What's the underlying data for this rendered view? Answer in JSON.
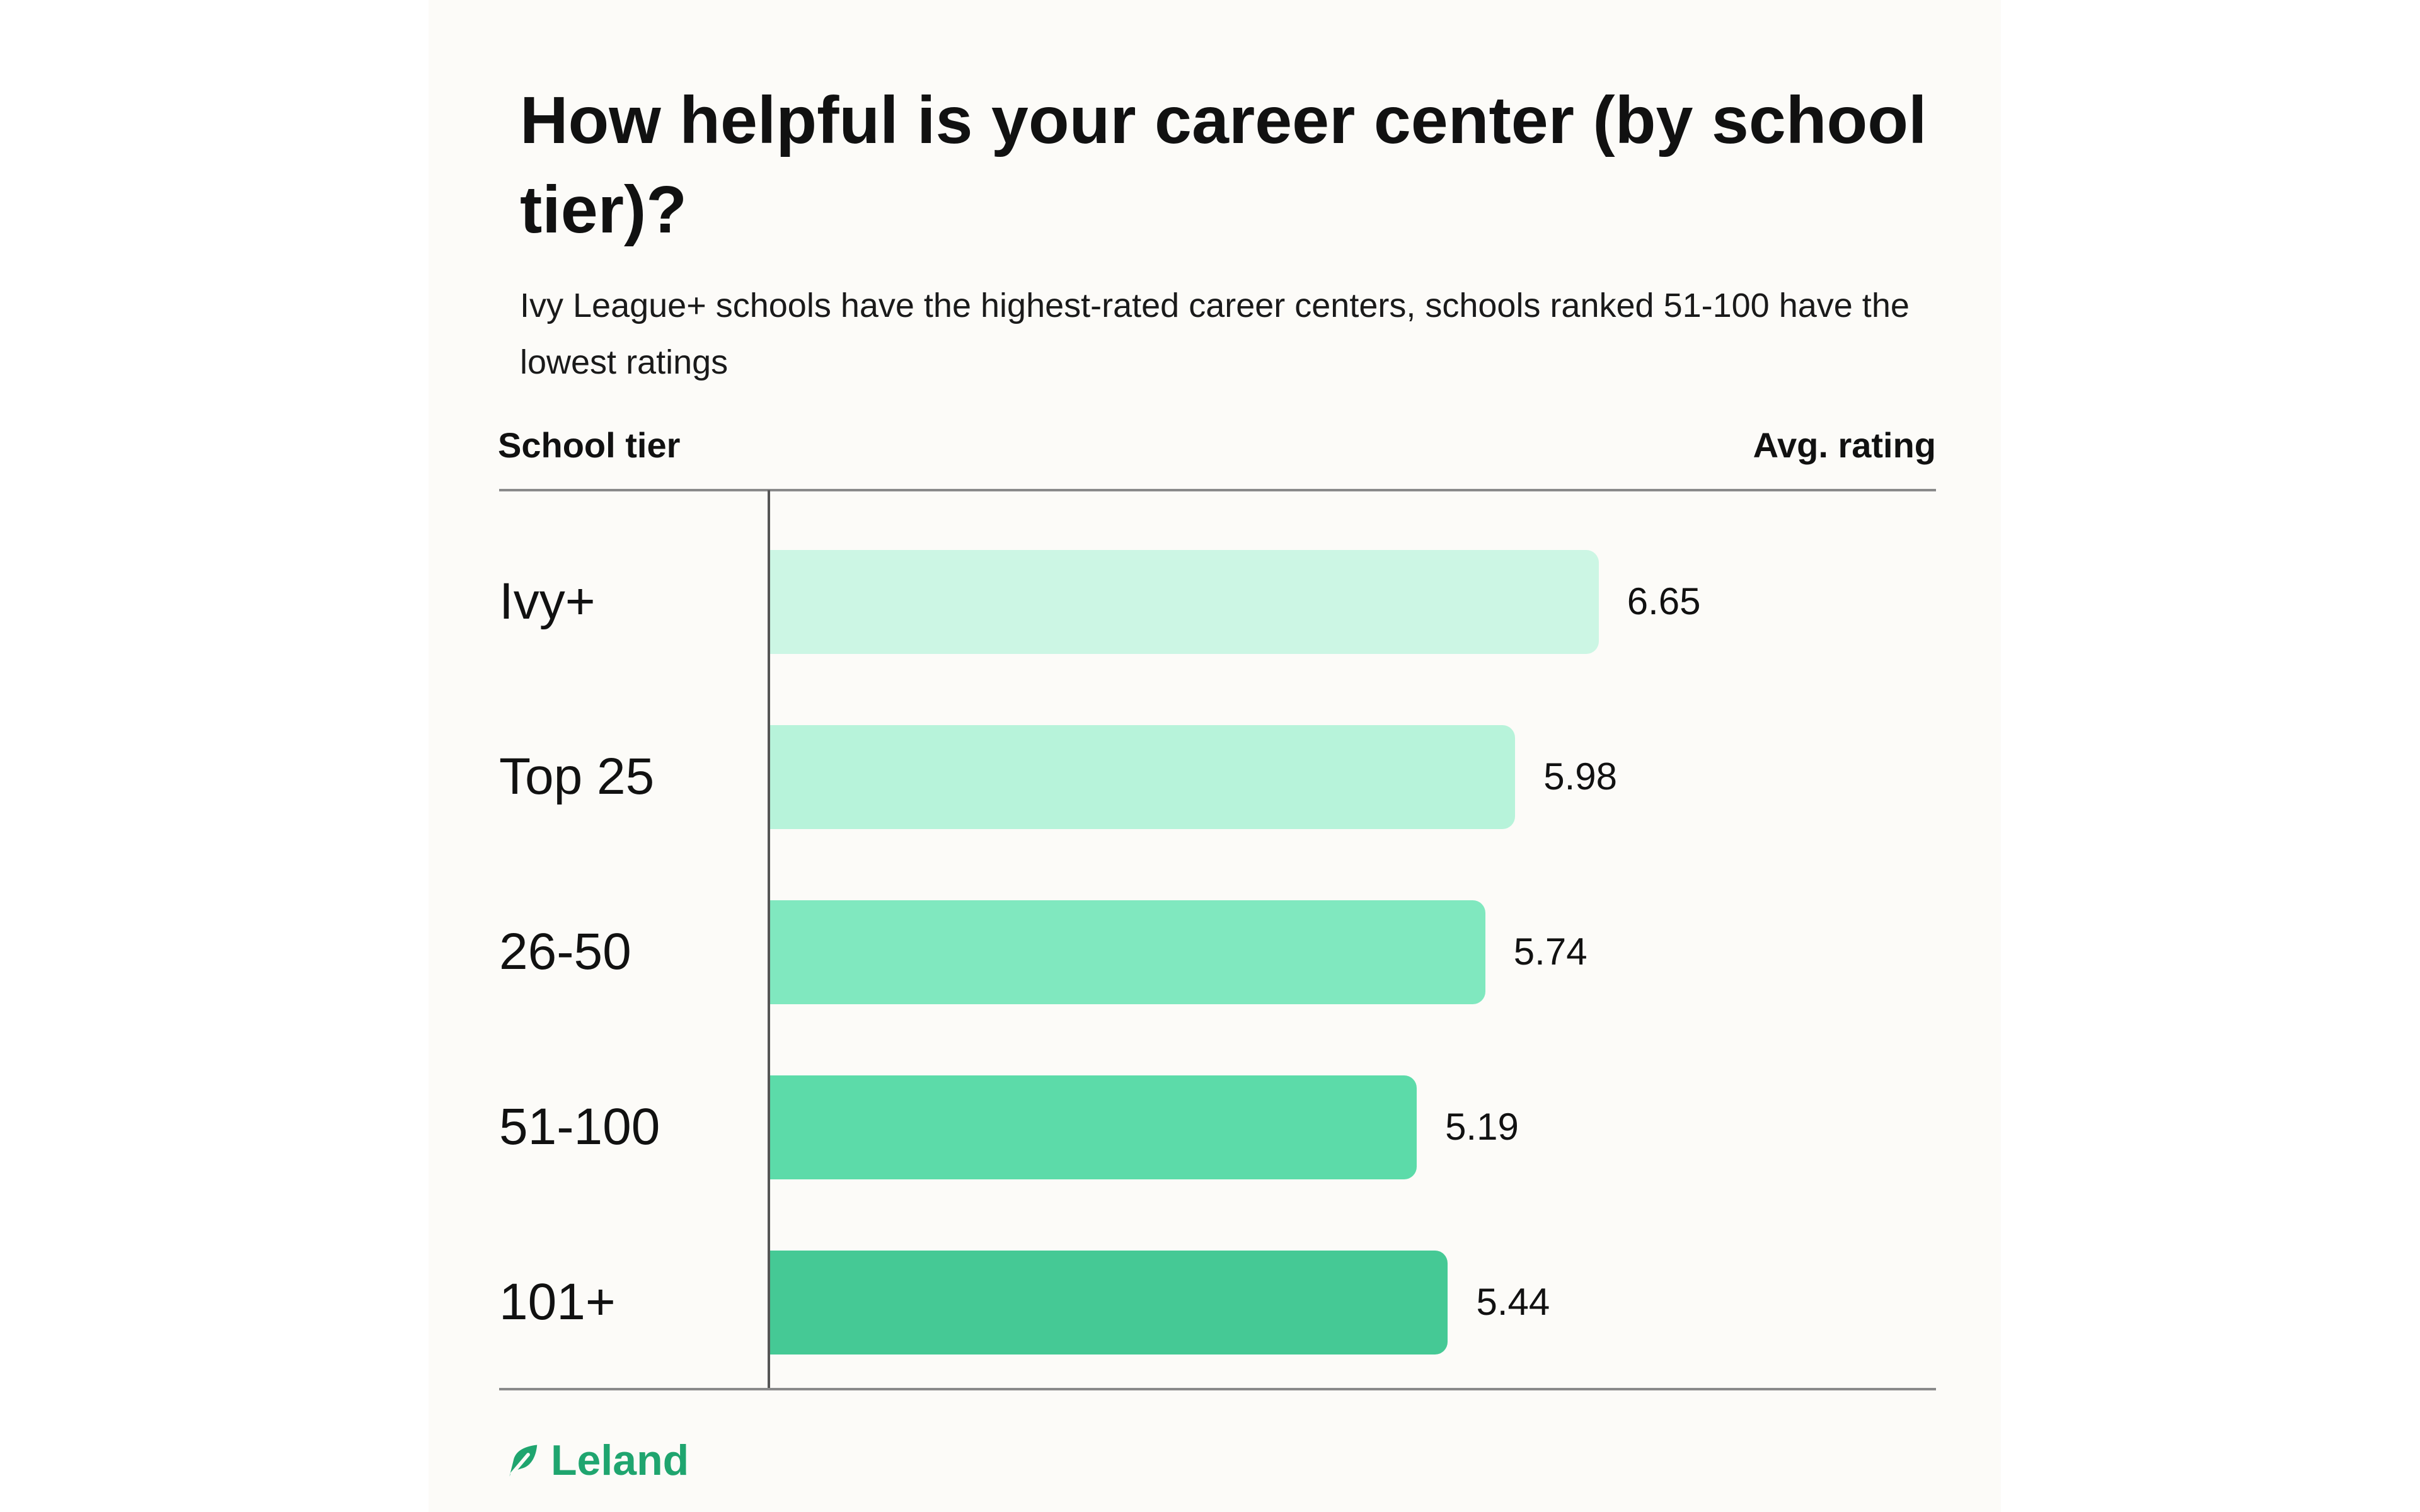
{
  "title": "How helpful is your career center (by school tier)?",
  "subtitle": "Ivy League+ schools have the highest-rated career centers, schools ranked 51-100 have the lowest ratings",
  "header": {
    "left": "School tier",
    "right": "Avg. rating"
  },
  "brand": {
    "name": "Leland",
    "color": "#1fa56f",
    "icon": "leaf-icon"
  },
  "chart_data": {
    "type": "bar",
    "orientation": "horizontal",
    "title": "How helpful is your career center (by school tier)?",
    "subtitle": "Ivy League+ schools have the highest-rated career centers, schools ranked 51-100 have the lowest ratings",
    "xlabel": "Avg. rating",
    "ylabel": "School tier",
    "categories": [
      "Ivy+",
      "Top 25",
      "26-50",
      "51-100",
      "101+"
    ],
    "values": [
      6.65,
      5.98,
      5.74,
      5.19,
      5.44
    ],
    "value_labels": [
      "6.65",
      "5.98",
      "5.74",
      "5.19",
      "5.44"
    ],
    "bar_colors": [
      "#ccf6e4",
      "#b7f3da",
      "#80e8bf",
      "#5cdba9",
      "#45c995"
    ],
    "xlim": [
      0,
      10
    ],
    "grid": false,
    "legend": "none"
  }
}
